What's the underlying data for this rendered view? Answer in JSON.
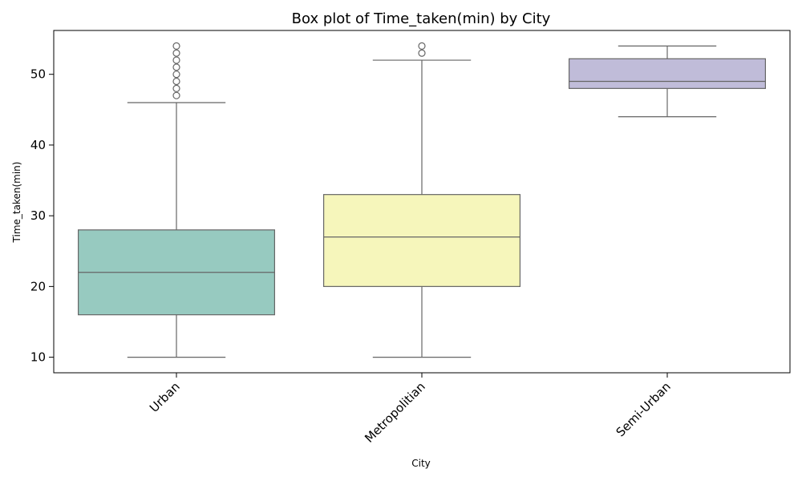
{
  "chart_data": {
    "type": "box",
    "title": "Box plot of Time_taken(min) by City",
    "xlabel": "City",
    "ylabel": "Time_taken(min)",
    "ylim": [
      7.8,
      56.2
    ],
    "yticks": [
      10,
      20,
      30,
      40,
      50
    ],
    "grid": false,
    "legend": "none",
    "categories": [
      "Urban",
      "Metropolitian",
      "Semi-Urban"
    ],
    "boxes": [
      {
        "category": "Urban",
        "color": "#97cac0",
        "whisker_low": 10,
        "q1": 16,
        "median": 22,
        "q3": 28,
        "whisker_high": 46,
        "outliers": [
          47,
          48,
          49,
          50,
          51,
          52,
          53,
          54
        ]
      },
      {
        "category": "Metropolitian",
        "color": "#f6f6bb",
        "whisker_low": 10,
        "q1": 20,
        "median": 27,
        "q3": 33,
        "whisker_high": 52,
        "outliers": [
          53,
          54
        ]
      },
      {
        "category": "Semi-Urban",
        "color": "#c0bcd9",
        "whisker_low": 44,
        "q1": 48,
        "median": 49,
        "q3": 52.2,
        "whisker_high": 54,
        "outliers": []
      }
    ]
  }
}
